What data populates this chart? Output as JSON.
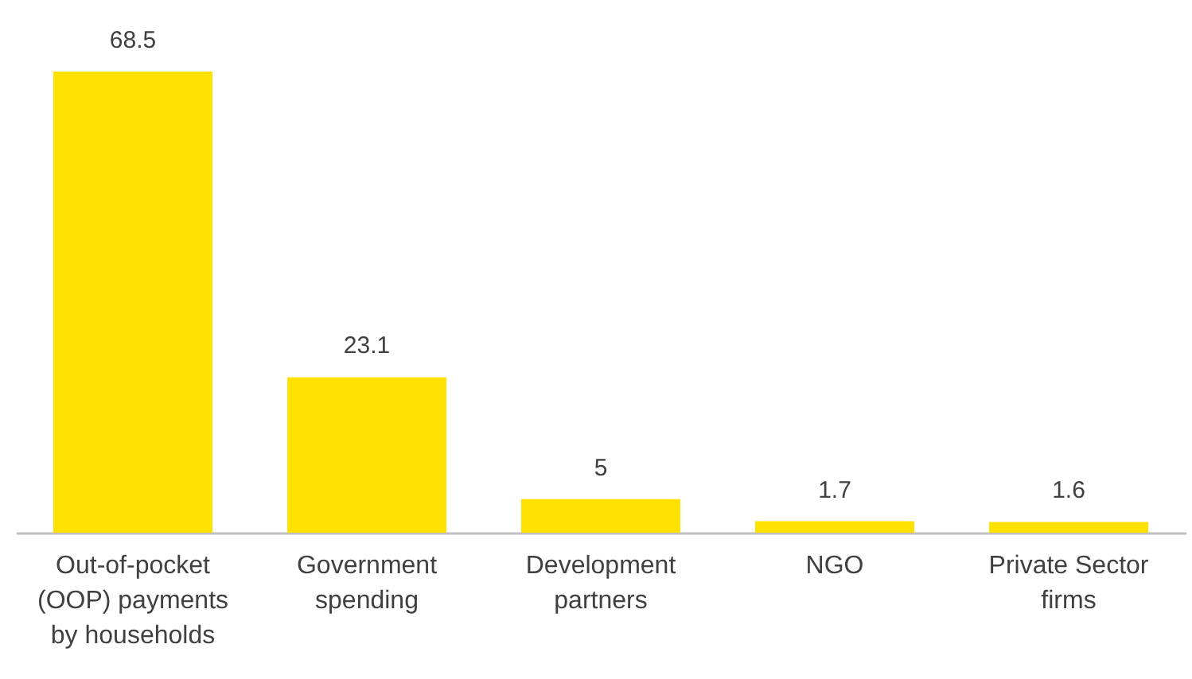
{
  "chart_data": {
    "type": "bar",
    "categories": [
      "Out-of-pocket (OOP) payments by households",
      "Government spending",
      "Development partners",
      "NGO",
      "Private Sector firms"
    ],
    "values": [
      68.5,
      23.1,
      5,
      1.7,
      1.6
    ],
    "color": "#ffe100",
    "data_labels": true
  }
}
